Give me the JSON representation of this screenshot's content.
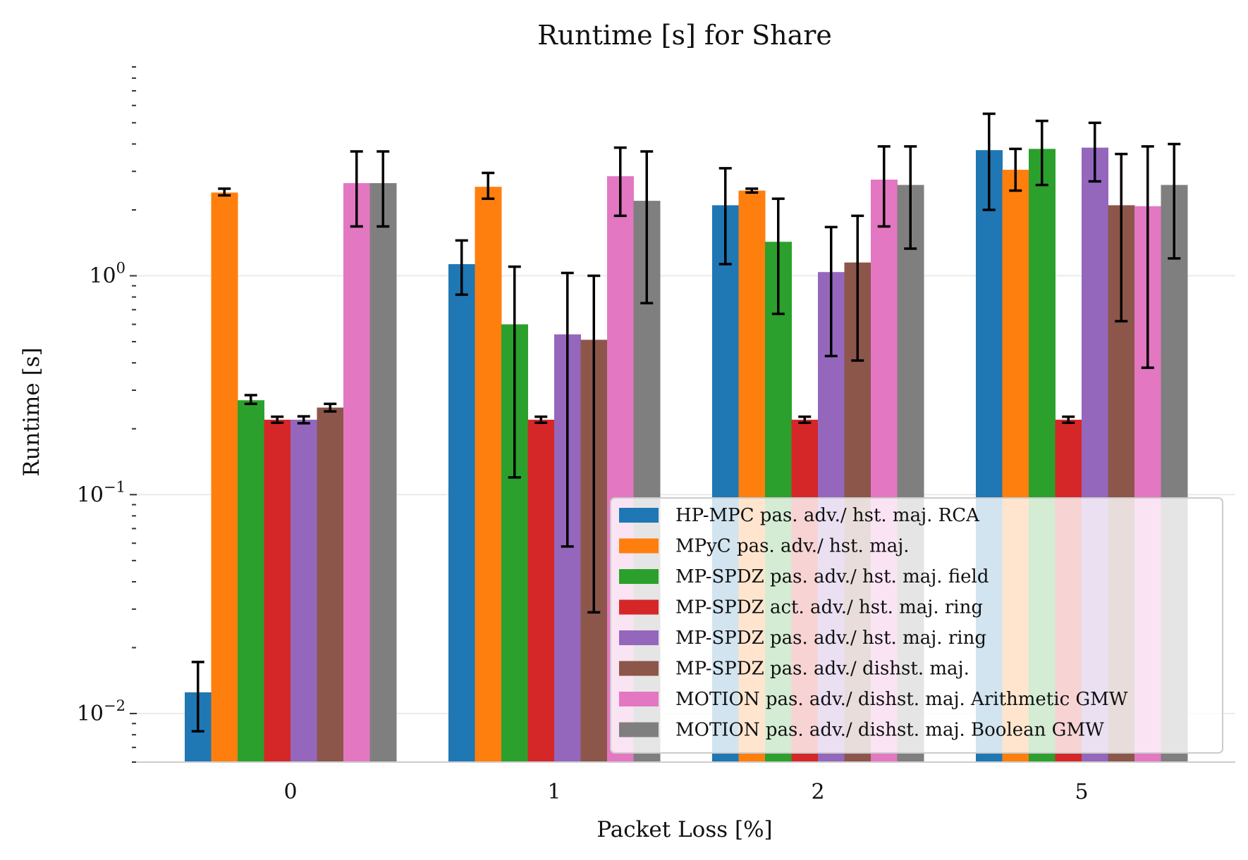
{
  "chart_data": {
    "type": "bar",
    "title": "Runtime [s] for Share",
    "xlabel": "Packet Loss [%]",
    "ylabel": "Runtime [s]",
    "yscale": "log",
    "ylim": [
      0.006,
      9
    ],
    "y_ticks": [
      {
        "value": 0.01,
        "base": "10",
        "exp": "−2"
      },
      {
        "value": 0.1,
        "base": "10",
        "exp": "−1"
      },
      {
        "value": 1,
        "base": "10",
        "exp": "0"
      }
    ],
    "categories": [
      "0",
      "1",
      "2",
      "5"
    ],
    "grid": "horizontal-major",
    "legend_position": "lower-right",
    "series": [
      {
        "name": "HP-MPC pas. adv./ hst. maj. RCA",
        "color": "#1f77b4",
        "values": [
          0.0125,
          1.13,
          2.1,
          3.75
        ],
        "err_low": [
          0.0083,
          0.82,
          1.13,
          2.0
        ],
        "err_high": [
          0.0172,
          1.45,
          3.1,
          5.5
        ]
      },
      {
        "name": "MPyC pas. adv./ hst. maj.",
        "color": "#ff7f0e",
        "values": [
          2.4,
          2.55,
          2.45,
          3.05
        ],
        "err_low": [
          2.33,
          2.25,
          2.4,
          2.45
        ],
        "err_high": [
          2.5,
          2.95,
          2.5,
          3.8
        ]
      },
      {
        "name": "MP-SPDZ pas. adv./ hst. maj. field",
        "color": "#2ca02c",
        "values": [
          0.27,
          0.6,
          1.43,
          3.8
        ],
        "err_low": [
          0.26,
          0.12,
          0.67,
          2.6
        ],
        "err_high": [
          0.285,
          1.1,
          2.25,
          5.1
        ]
      },
      {
        "name": "MP-SPDZ act. adv./ hst. maj. ring",
        "color": "#d62728",
        "values": [
          0.22,
          0.22,
          0.22,
          0.22
        ],
        "err_low": [
          0.213,
          0.213,
          0.213,
          0.213
        ],
        "err_high": [
          0.227,
          0.227,
          0.227,
          0.227
        ]
      },
      {
        "name": "MP-SPDZ pas. adv./ hst. maj. ring",
        "color": "#9467bd",
        "values": [
          0.22,
          0.54,
          1.04,
          3.85
        ],
        "err_low": [
          0.212,
          0.058,
          0.43,
          2.7
        ],
        "err_high": [
          0.228,
          1.03,
          1.67,
          5.0
        ]
      },
      {
        "name": "MP-SPDZ pas. adv./ dishst. maj.",
        "color": "#8c564b",
        "values": [
          0.25,
          0.51,
          1.15,
          2.1
        ],
        "err_low": [
          0.24,
          0.029,
          0.41,
          0.62
        ],
        "err_high": [
          0.26,
          1.0,
          1.88,
          3.6
        ]
      },
      {
        "name": "MOTION pas. adv./ dishst. maj. Arithmetic GMW",
        "color": "#e377c2",
        "values": [
          2.65,
          2.85,
          2.75,
          2.08
        ],
        "err_low": [
          1.68,
          1.88,
          1.68,
          0.38
        ],
        "err_high": [
          3.7,
          3.85,
          3.9,
          3.9
        ]
      },
      {
        "name": "MOTION pas. adv./ dishst. maj. Boolean GMW",
        "color": "#7f7f7f",
        "values": [
          2.65,
          2.2,
          2.6,
          2.6
        ],
        "err_low": [
          1.68,
          0.75,
          1.33,
          1.2
        ],
        "err_high": [
          3.7,
          3.7,
          3.9,
          4.0
        ]
      }
    ]
  }
}
